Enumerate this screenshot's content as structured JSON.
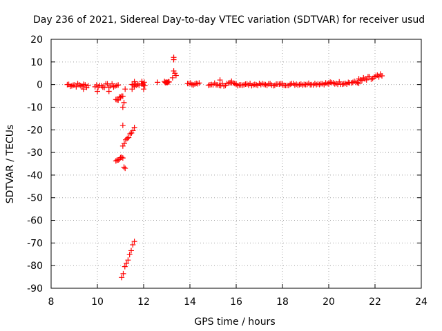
{
  "chart_data": {
    "type": "scatter",
    "title": "Day 236 of 2021, Sidereal Day-to-day VTEC variation (SDTVAR) for receiver usud",
    "xlabel": "GPS time / hours",
    "ylabel": "SDTVAR / TECUs",
    "xlim": [
      8,
      24
    ],
    "ylim": [
      -90,
      20
    ],
    "xticks": [
      "8",
      "10",
      "12",
      "14",
      "16",
      "18",
      "20",
      "22",
      "24"
    ],
    "yticks": [
      "20",
      "10",
      "0",
      "-10",
      "-20",
      "-30",
      "-40",
      "-50",
      "-60",
      "-70",
      "-80",
      "-90"
    ],
    "grid": true,
    "marker": "plus",
    "color": "#ff0000",
    "segments": [
      {
        "x0": 8.7,
        "x1": 9.6,
        "y0": 0.0,
        "y1": -0.5,
        "spread": 1.8
      },
      {
        "x0": 9.9,
        "x1": 10.9,
        "y0": -0.5,
        "y1": -0.5,
        "spread": 1.8
      },
      {
        "x0": 11.5,
        "x1": 11.8,
        "y0": 0.5,
        "y1": 0.0,
        "spread": 2.0
      },
      {
        "x0": 11.9,
        "x1": 12.05,
        "y0": 1.0,
        "y1": 0.0,
        "spread": 2.0
      },
      {
        "x0": 12.9,
        "x1": 13.1,
        "y0": 1.0,
        "y1": 1.0,
        "spread": 1.0
      },
      {
        "x0": 13.9,
        "x1": 14.4,
        "y0": 1.0,
        "y1": 0.0,
        "spread": 1.5
      },
      {
        "x0": 14.8,
        "x1": 16.0,
        "y0": 0.0,
        "y1": 0.0,
        "spread": 1.8
      },
      {
        "x0": 16.0,
        "x1": 18.0,
        "y0": 0.0,
        "y1": 0.0,
        "spread": 1.0
      },
      {
        "x0": 18.0,
        "x1": 20.0,
        "y0": 0.0,
        "y1": 0.5,
        "spread": 1.0
      },
      {
        "x0": 20.0,
        "x1": 21.3,
        "y0": 0.5,
        "y1": 1.0,
        "spread": 1.3
      },
      {
        "x0": 21.3,
        "x1": 22.3,
        "y0": 1.5,
        "y1": 3.5,
        "spread": 2.6
      },
      {
        "x0": 10.8,
        "x1": 11.1,
        "y0": -7.0,
        "y1": -5.0,
        "spread": 1.2
      },
      {
        "x0": 10.8,
        "x1": 11.1,
        "y0": -34.0,
        "y1": -32.0,
        "spread": 1.0
      },
      {
        "x0": 11.1,
        "x1": 11.6,
        "y0": -27.0,
        "y1": -19.0,
        "spread": 1.2
      },
      {
        "x0": 11.05,
        "x1": 11.6,
        "y0": -85.0,
        "y1": -69.0,
        "spread": 1.2
      }
    ],
    "points": [
      [
        11.2,
        -37.0
      ],
      [
        11.15,
        -36.5
      ],
      [
        11.1,
        -18.0
      ],
      [
        11.1,
        -10.0
      ],
      [
        11.15,
        -8.0
      ],
      [
        11.2,
        -2.0
      ],
      [
        11.5,
        -2.0
      ],
      [
        11.6,
        -1.0
      ],
      [
        12.6,
        1.0
      ],
      [
        13.3,
        12.0
      ],
      [
        13.3,
        11.0
      ],
      [
        13.3,
        6.0
      ],
      [
        13.35,
        5.0
      ],
      [
        13.4,
        4.0
      ],
      [
        13.25,
        3.0
      ],
      [
        15.3,
        2.0
      ],
      [
        15.8,
        1.5
      ],
      [
        12.0,
        -2.0
      ],
      [
        10.0,
        -3.0
      ],
      [
        10.5,
        -3.0
      ],
      [
        9.4,
        -2.0
      ]
    ]
  }
}
